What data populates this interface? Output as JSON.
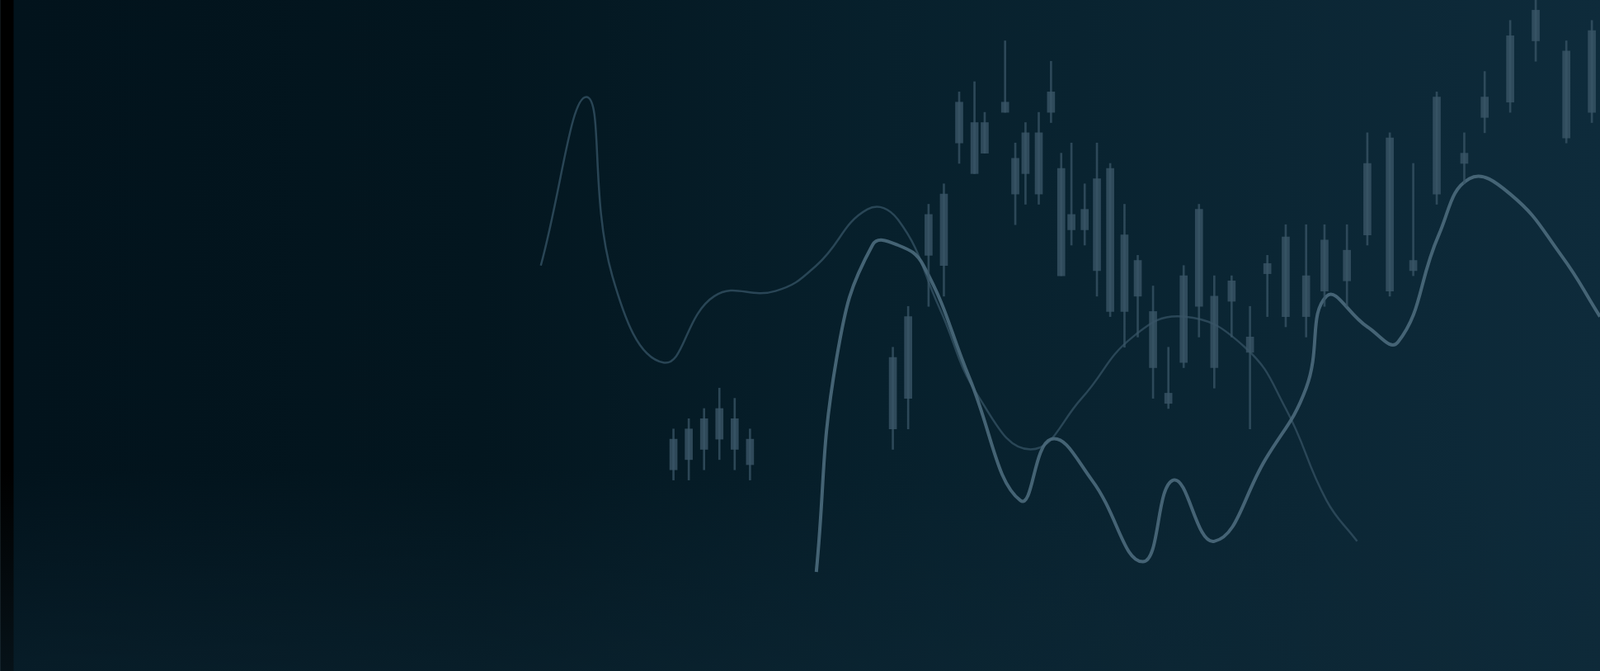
{
  "chart_data": {
    "type": "candlestick",
    "tick_labels": false,
    "grid": false,
    "xlim": [
      0,
      1568
    ],
    "ylim": [
      0,
      657
    ],
    "candles": {
      "color": "#3a5567",
      "x": [
        660,
        675,
        690,
        705,
        720,
        735,
        875,
        890,
        910,
        925,
        940,
        955,
        965,
        985,
        995,
        1005,
        1018,
        1030,
        1040,
        1050,
        1063,
        1075,
        1088,
        1102,
        1115,
        1130,
        1145,
        1160,
        1175,
        1190,
        1207,
        1225,
        1242,
        1260,
        1280,
        1298,
        1320,
        1340,
        1362,
        1385,
        1408,
        1435,
        1455,
        1480,
        1505,
        1535,
        1560
      ],
      "high": [
        237,
        247,
        257,
        277,
        267,
        237,
        317,
        357,
        457,
        477,
        567,
        577,
        547,
        617,
        517,
        537,
        547,
        597,
        507,
        517,
        477,
        517,
        497,
        457,
        407,
        377,
        317,
        397,
        457,
        387,
        387,
        357,
        407,
        437,
        437,
        437,
        437,
        527,
        527,
        497,
        567,
        527,
        587,
        637,
        657,
        617,
        637
      ],
      "low": [
        187,
        187,
        197,
        207,
        197,
        187,
        217,
        237,
        357,
        367,
        497,
        487,
        507,
        547,
        437,
        457,
        457,
        537,
        387,
        417,
        417,
        367,
        347,
        317,
        327,
        267,
        257,
        297,
        327,
        277,
        327,
        237,
        347,
        337,
        327,
        357,
        357,
        417,
        367,
        387,
        457,
        477,
        527,
        547,
        597,
        517,
        537
      ],
      "open": [
        197,
        207,
        217,
        227,
        217,
        202,
        237,
        267,
        407,
        397,
        517,
        487,
        507,
        547,
        467,
        487,
        467,
        547,
        387,
        432,
        432,
        392,
        352,
        352,
        367,
        297,
        262,
        302,
        357,
        297,
        362,
        312,
        389,
        347,
        347,
        372,
        382,
        427,
        372,
        392,
        467,
        497,
        542,
        557,
        617,
        522,
        547
      ],
      "close": [
        227,
        237,
        247,
        257,
        247,
        227,
        307,
        347,
        447,
        467,
        557,
        537,
        537,
        557,
        502,
        527,
        527,
        567,
        492,
        447,
        452,
        482,
        492,
        427,
        402,
        352,
        272,
        387,
        452,
        367,
        382,
        327,
        399,
        425,
        387,
        422,
        412,
        497,
        522,
        402,
        562,
        507,
        562,
        622,
        647,
        607,
        627
      ]
    },
    "series": [
      {
        "type": "line",
        "color": "#4b6a7c",
        "x": [
          800,
          820,
          855,
          880,
          905,
          950,
          1000,
          1030,
          1070,
          1120,
          1150,
          1190,
          1240,
          1280,
          1300,
          1340,
          1370,
          1410,
          1440,
          1480,
          1530,
          1568
        ],
        "values": [
          97,
          307,
          417,
          417,
          397,
          287,
          167,
          227,
          187,
          107,
          187,
          127,
          207,
          277,
          367,
          337,
          322,
          427,
          482,
          467,
          407,
          347
        ]
      },
      {
        "type": "line",
        "color": "#2e4a5b",
        "x": [
          530,
          575,
          600,
          650,
          700,
          760,
          800,
          850,
          880,
          920,
          960,
          1010,
          1060,
          1110,
          1160,
          1220,
          1260,
          1300,
          1330
        ],
        "values": [
          397,
          562,
          387,
          302,
          367,
          372,
          397,
          452,
          442,
          357,
          267,
          217,
          267,
          327,
          347,
          317,
          257,
          167,
          127
        ]
      }
    ]
  }
}
